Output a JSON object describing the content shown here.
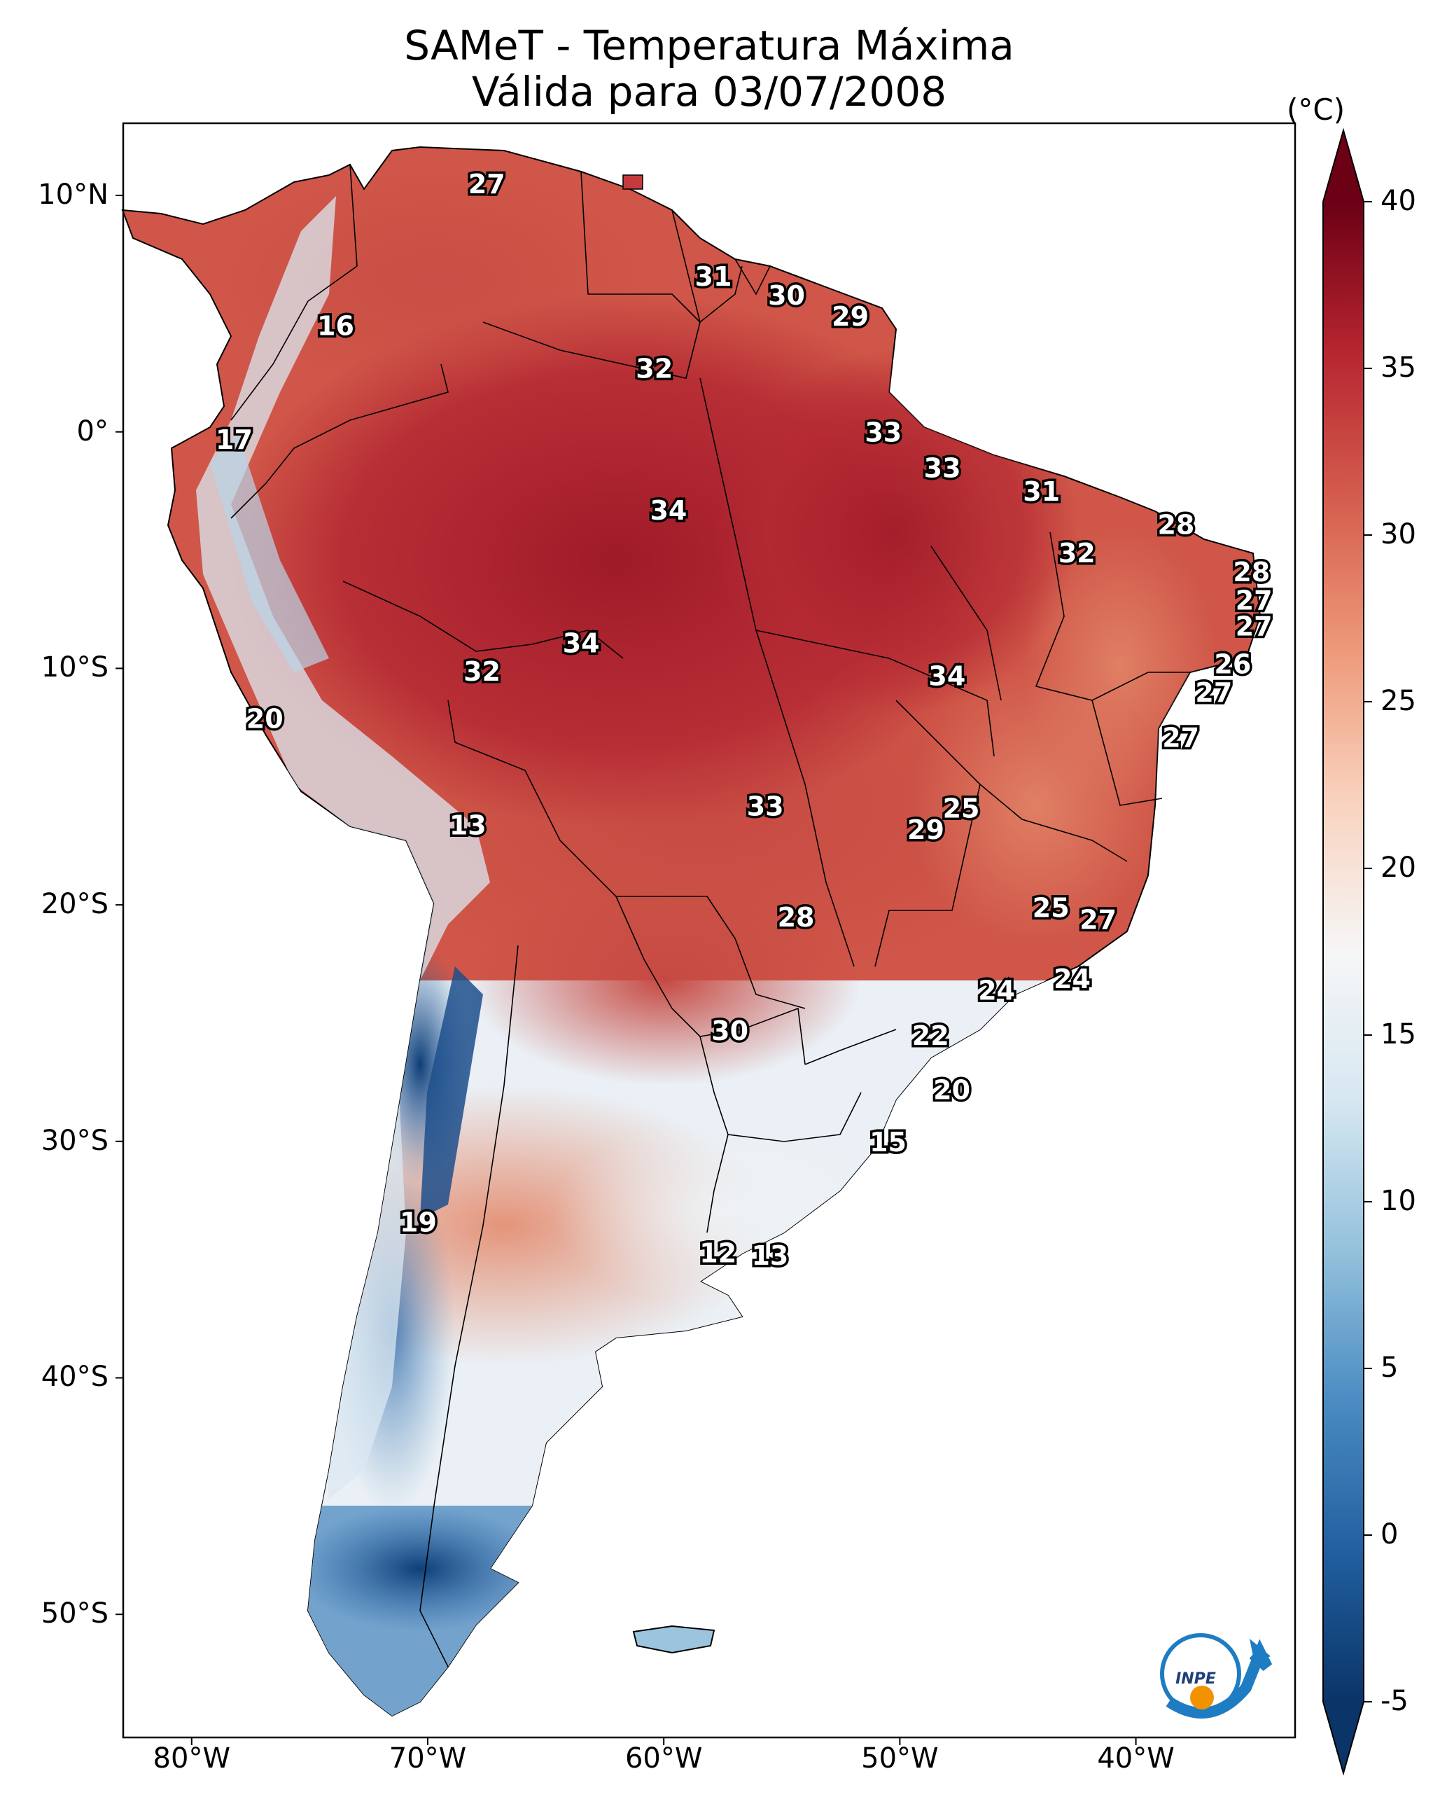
{
  "title": {
    "line1": "SAMeT - Temperatura Máxima",
    "line2": "Válida para 03/07/2008"
  },
  "lat_ticks": [
    "10°N",
    "0°",
    "10°S",
    "20°S",
    "30°S",
    "40°S",
    "50°S"
  ],
  "lon_ticks": [
    "80°W",
    "70°W",
    "60°W",
    "50°W",
    "40°W"
  ],
  "colorbar": {
    "unit": "(°C)",
    "min": -5,
    "max": 40,
    "ticks": [
      "40",
      "35",
      "30",
      "25",
      "20",
      "15",
      "10",
      "5",
      "0",
      "-5"
    ],
    "colors": [
      "#0b3468",
      "#215f9f",
      "#4a8bc2",
      "#93c1dc",
      "#d6e7f1",
      "#f6f6f6",
      "#f9d3bf",
      "#ee9a7a",
      "#d55e4e",
      "#b72530",
      "#6c0014"
    ]
  },
  "labels": [
    {
      "text": "27",
      "lon": -67.5,
      "lat": 10.5
    },
    {
      "text": "16",
      "lon": -73.9,
      "lat": 4.5
    },
    {
      "text": "31",
      "lon": -57.9,
      "lat": 6.6
    },
    {
      "text": "30",
      "lon": -54.8,
      "lat": 5.8
    },
    {
      "text": "29",
      "lon": -52.1,
      "lat": 4.9
    },
    {
      "text": "32",
      "lon": -60.4,
      "lat": 2.7
    },
    {
      "text": "17",
      "lon": -78.2,
      "lat": -0.3
    },
    {
      "text": "33",
      "lon": -50.7,
      "lat": 0.0
    },
    {
      "text": "33",
      "lon": -48.2,
      "lat": -1.5
    },
    {
      "text": "34",
      "lon": -59.8,
      "lat": -3.3
    },
    {
      "text": "31",
      "lon": -44.0,
      "lat": -2.5
    },
    {
      "text": "28",
      "lon": -38.3,
      "lat": -3.9
    },
    {
      "text": "32",
      "lon": -42.5,
      "lat": -5.1
    },
    {
      "text": "28",
      "lon": -35.1,
      "lat": -5.9
    },
    {
      "text": "27",
      "lon": -35.0,
      "lat": -7.1
    },
    {
      "text": "27",
      "lon": -35.0,
      "lat": -8.2
    },
    {
      "text": "34",
      "lon": -63.5,
      "lat": -8.9
    },
    {
      "text": "32",
      "lon": -67.7,
      "lat": -10.1
    },
    {
      "text": "26",
      "lon": -35.9,
      "lat": -9.8
    },
    {
      "text": "34",
      "lon": -48.0,
      "lat": -10.3
    },
    {
      "text": "27",
      "lon": -36.7,
      "lat": -11.0
    },
    {
      "text": "20",
      "lon": -76.9,
      "lat": -12.1
    },
    {
      "text": "27",
      "lon": -38.1,
      "lat": -12.9
    },
    {
      "text": "33",
      "lon": -55.7,
      "lat": -15.8
    },
    {
      "text": "25",
      "lon": -47.4,
      "lat": -15.9
    },
    {
      "text": "29",
      "lon": -48.9,
      "lat": -16.8
    },
    {
      "text": "13",
      "lon": -68.3,
      "lat": -16.6
    },
    {
      "text": "25",
      "lon": -43.6,
      "lat": -20.1
    },
    {
      "text": "28",
      "lon": -54.4,
      "lat": -20.5
    },
    {
      "text": "27",
      "lon": -41.6,
      "lat": -20.6
    },
    {
      "text": "24",
      "lon": -42.7,
      "lat": -23.1
    },
    {
      "text": "24",
      "lon": -45.9,
      "lat": -23.6
    },
    {
      "text": "30",
      "lon": -57.2,
      "lat": -25.3
    },
    {
      "text": "22",
      "lon": -48.7,
      "lat": -25.5
    },
    {
      "text": "20",
      "lon": -47.8,
      "lat": -27.8
    },
    {
      "text": "15",
      "lon": -50.5,
      "lat": -30.0
    },
    {
      "text": "19",
      "lon": -70.4,
      "lat": -33.4
    },
    {
      "text": "12",
      "lon": -57.7,
      "lat": -34.7
    },
    {
      "text": "13",
      "lon": -55.5,
      "lat": -34.8
    }
  ],
  "logo": {
    "text": "INPE"
  }
}
